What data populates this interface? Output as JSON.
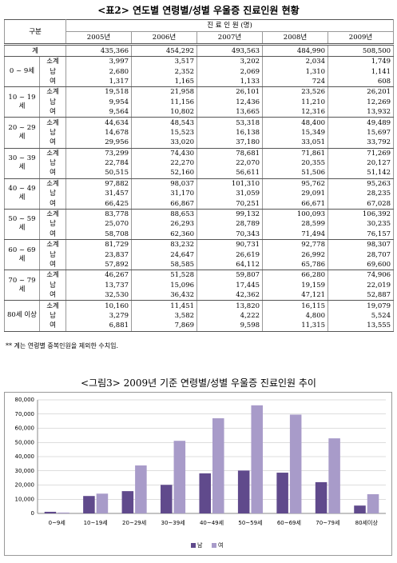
{
  "header": {
    "title": "<표2> 연도별 연령별/성별 우울증 진료인원 현황"
  },
  "table": {
    "corner": "구분",
    "span_header": "진 료 인 원 (명)",
    "years": [
      "2005년",
      "2006년",
      "2007년",
      "2008년",
      "2009년"
    ],
    "total": {
      "label": "계",
      "values": [
        "435,366",
        "454,292",
        "493,563",
        "484,990",
        "508,500"
      ]
    },
    "groups": [
      {
        "label": "0 ~ 9세",
        "rows": [
          {
            "label": "소계",
            "values": [
              "3,997",
              "3,517",
              "3,202",
              "2,034",
              "1,749"
            ]
          },
          {
            "label": "남",
            "values": [
              "2,680",
              "2,352",
              "2,069",
              "1,310",
              "1,141"
            ]
          },
          {
            "label": "여",
            "values": [
              "1,317",
              "1,165",
              "1,133",
              "724",
              "608"
            ]
          }
        ]
      },
      {
        "label": "10 ~ 19세",
        "rows": [
          {
            "label": "소계",
            "values": [
              "19,518",
              "21,958",
              "26,101",
              "23,526",
              "26,201"
            ]
          },
          {
            "label": "남",
            "values": [
              "9,954",
              "11,156",
              "12,436",
              "11,210",
              "12,269"
            ]
          },
          {
            "label": "여",
            "values": [
              "9,564",
              "10,802",
              "13,665",
              "12,316",
              "13,932"
            ]
          }
        ]
      },
      {
        "label": "20 ~ 29세",
        "rows": [
          {
            "label": "소계",
            "values": [
              "44,634",
              "48,543",
              "53,318",
              "48,400",
              "49,489"
            ]
          },
          {
            "label": "남",
            "values": [
              "14,678",
              "15,523",
              "16,138",
              "15,349",
              "15,697"
            ]
          },
          {
            "label": "여",
            "values": [
              "29,956",
              "33,020",
              "37,180",
              "33,051",
              "33,792"
            ]
          }
        ]
      },
      {
        "label": "30 ~ 39세",
        "rows": [
          {
            "label": "소계",
            "values": [
              "73,299",
              "74,430",
              "78,681",
              "71,861",
              "71,269"
            ]
          },
          {
            "label": "남",
            "values": [
              "22,784",
              "22,270",
              "22,070",
              "20,355",
              "20,127"
            ]
          },
          {
            "label": "여",
            "values": [
              "50,515",
              "52,160",
              "56,611",
              "51,506",
              "51,142"
            ]
          }
        ]
      },
      {
        "label": "40 ~ 49세",
        "rows": [
          {
            "label": "소계",
            "values": [
              "97,882",
              "98,037",
              "101,310",
              "95,762",
              "95,263"
            ]
          },
          {
            "label": "남",
            "values": [
              "31,457",
              "31,170",
              "31,059",
              "29,091",
              "28,235"
            ]
          },
          {
            "label": "여",
            "values": [
              "66,425",
              "66,867",
              "70,251",
              "66,671",
              "67,028"
            ]
          }
        ]
      },
      {
        "label": "50 ~ 59세",
        "rows": [
          {
            "label": "소계",
            "values": [
              "83,778",
              "88,653",
              "99,132",
              "100,093",
              "106,392"
            ]
          },
          {
            "label": "남",
            "values": [
              "25,070",
              "26,293",
              "28,789",
              "28,599",
              "30,235"
            ]
          },
          {
            "label": "여",
            "values": [
              "58,708",
              "62,360",
              "70,343",
              "71,494",
              "76,157"
            ]
          }
        ]
      },
      {
        "label": "60 ~ 69세",
        "rows": [
          {
            "label": "소계",
            "values": [
              "81,729",
              "83,232",
              "90,731",
              "92,778",
              "98,307"
            ]
          },
          {
            "label": "남",
            "values": [
              "23,837",
              "24,647",
              "26,619",
              "26,992",
              "28,707"
            ]
          },
          {
            "label": "여",
            "values": [
              "57,892",
              "58,585",
              "64,112",
              "65,786",
              "69,600"
            ]
          }
        ]
      },
      {
        "label": "70 ~ 79세",
        "rows": [
          {
            "label": "소계",
            "values": [
              "46,267",
              "51,528",
              "59,807",
              "66,280",
              "74,906"
            ]
          },
          {
            "label": "남",
            "values": [
              "13,737",
              "15,096",
              "17,445",
              "19,159",
              "22,019"
            ]
          },
          {
            "label": "여",
            "values": [
              "32,530",
              "36,432",
              "42,362",
              "47,121",
              "52,887"
            ]
          }
        ]
      },
      {
        "label": "80세 이상",
        "rows": [
          {
            "label": "소계",
            "values": [
              "10,160",
              "11,451",
              "13,820",
              "16,115",
              "19,079"
            ]
          },
          {
            "label": "남",
            "values": [
              "3,279",
              "3,582",
              "4,222",
              "4,800",
              "5,524"
            ]
          },
          {
            "label": "여",
            "values": [
              "6,881",
              "7,869",
              "9,598",
              "11,315",
              "13,555"
            ]
          }
        ]
      }
    ]
  },
  "footnote": "** 계는 연령별 중복인원을 제외한 수치임.",
  "chart_data": {
    "type": "bar",
    "title": "<그림3> 2009년 기준 연령별/성별 우울증 진료인원 추이",
    "categories": [
      "0~9세",
      "10~19세",
      "20~29세",
      "30~39세",
      "40~49세",
      "50~59세",
      "60~69세",
      "70~79세",
      "80세이상"
    ],
    "series": [
      {
        "name": "남",
        "color": "#604a8c",
        "values": [
          1141,
          12269,
          15697,
          20127,
          28235,
          30235,
          28707,
          22019,
          5524
        ]
      },
      {
        "name": "여",
        "color": "#a89bc9",
        "values": [
          608,
          13932,
          33792,
          51142,
          67028,
          76157,
          69600,
          52887,
          13555
        ]
      }
    ],
    "ylim": [
      0,
      80000
    ],
    "yticks": [
      0,
      {
        "value": 10000,
        "label": "10,000"
      },
      {
        "value": 20000,
        "label": "20,000"
      },
      {
        "value": 30000,
        "label": "30,000"
      },
      {
        "value": 40000,
        "label": "40,000"
      },
      {
        "value": 50000,
        "label": "50,000"
      },
      {
        "value": 60000,
        "label": "60,000"
      },
      {
        "value": 70000,
        "label": "70,000"
      },
      {
        "value": 80000,
        "label": "80,000"
      }
    ],
    "grid": true,
    "legend": "bottom"
  }
}
